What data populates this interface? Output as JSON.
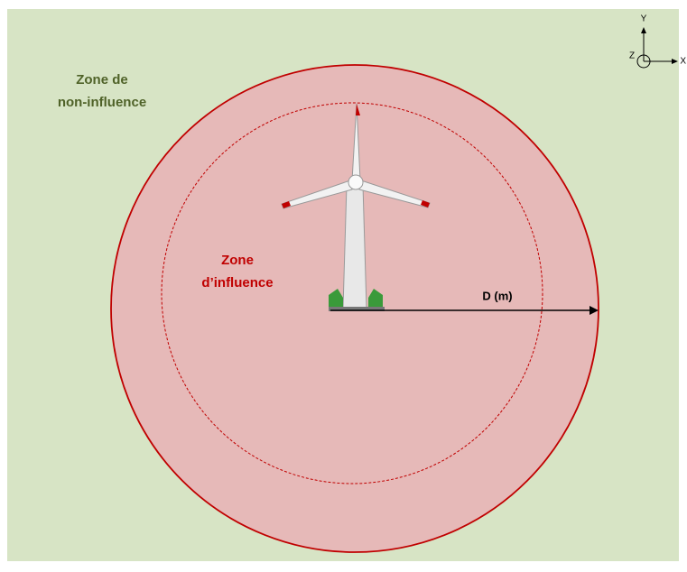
{
  "zone_non_influence": [
    "Zone de",
    "non-influence"
  ],
  "zone_influence": [
    "Zone",
    "d’influence"
  ],
  "distance_label": "D (m)",
  "axes": {
    "y": "Y",
    "z": "Z",
    "x": "X"
  }
}
